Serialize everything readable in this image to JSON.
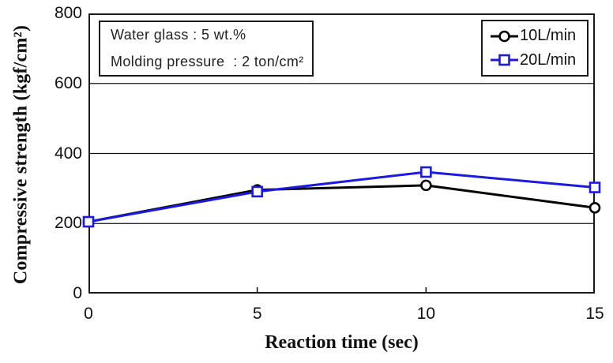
{
  "chart_data": {
    "type": "line",
    "xlabel": "Reaction time (sec)",
    "ylabel": "Compressive strength (kgf/cm²)",
    "x": [
      0,
      5,
      10,
      15
    ],
    "xlim": [
      0,
      15
    ],
    "ylim": [
      0,
      800
    ],
    "x_tick_labels": [
      "0",
      "5",
      "10",
      "15"
    ],
    "y_tick_labels": [
      "0",
      "200",
      "400",
      "600",
      "800"
    ],
    "y_tick_values": [
      0,
      200,
      400,
      600,
      800
    ],
    "y_gridline_values": [
      200,
      400,
      600
    ],
    "x_inner_tick_values": [
      5,
      10
    ],
    "grid": "horizontal-solid",
    "legend_position": "top-right",
    "series": [
      {
        "name": "10L/min",
        "color": "#000000",
        "marker": "circle",
        "values": [
          205,
          296,
          309,
          245
        ]
      },
      {
        "name": "20L/min",
        "color": "#1a1ae0",
        "marker": "square",
        "values": [
          205,
          291,
          347,
          303
        ]
      }
    ],
    "annotations": [
      "Water glass : 5 wt.%",
      "Molding pressure  : 2 ton/cm²"
    ]
  },
  "colors": {
    "series_black": "#000000",
    "series_blue": "#1a1ae0",
    "frame": "#1a1a1a",
    "gridline": "#111111",
    "background": "#ffffff"
  }
}
